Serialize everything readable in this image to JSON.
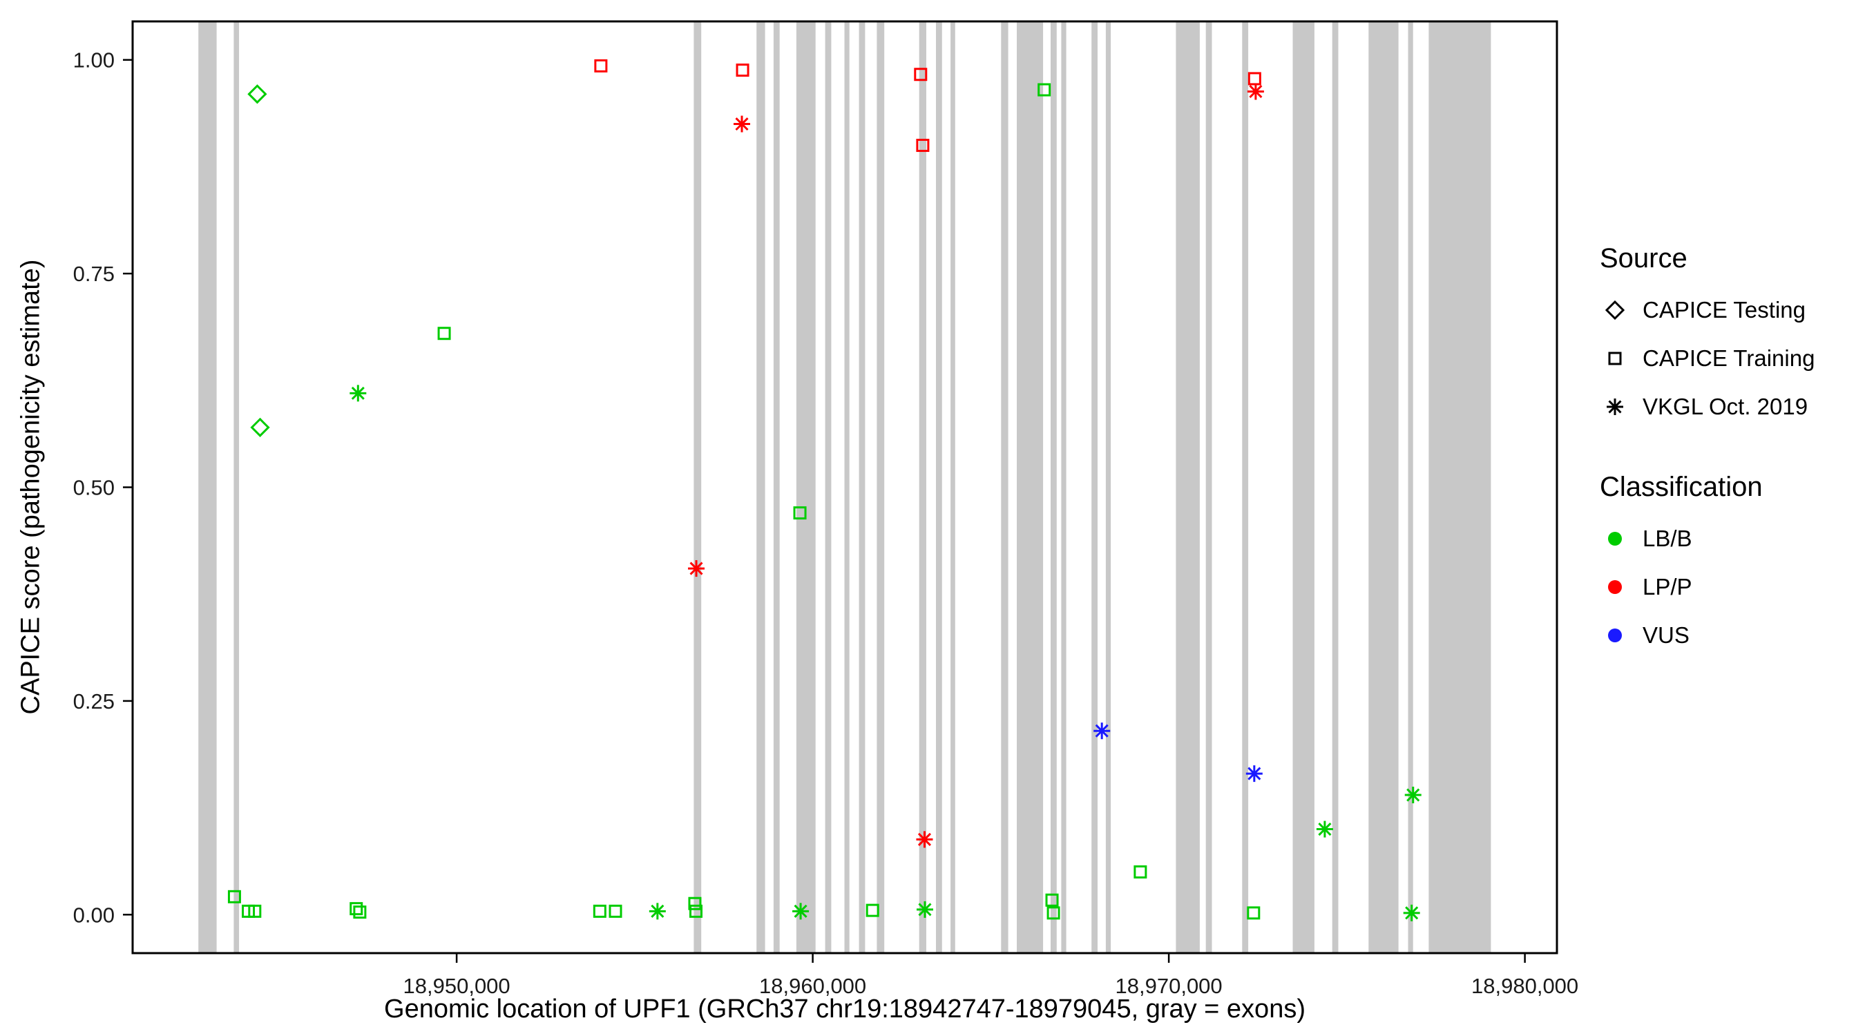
{
  "chart_data": {
    "type": "scatter",
    "title": "",
    "xlabel": "Genomic location of UPF1 (GRCh37 chr19:18942747-18979045, gray = exons)",
    "ylabel": "CAPICE score (pathogenicity estimate)",
    "xlim": [
      18940900,
      18980900
    ],
    "ylim": [
      -0.045,
      1.045
    ],
    "grid": false,
    "legend_position": "right",
    "x_ticks": [
      {
        "value": 18950000,
        "label": "18,950,000"
      },
      {
        "value": 18960000,
        "label": "18,960,000"
      },
      {
        "value": 18970000,
        "label": "18,970,000"
      },
      {
        "value": 18980000,
        "label": "18,980,000"
      }
    ],
    "y_ticks": [
      {
        "value": 0.0,
        "label": "0.00"
      },
      {
        "value": 0.25,
        "label": "0.25"
      },
      {
        "value": 0.5,
        "label": "0.50"
      },
      {
        "value": 0.75,
        "label": "0.75"
      },
      {
        "value": 1.0,
        "label": "1.00"
      }
    ],
    "exon_color": "#c8c8c8",
    "exons": [
      [
        18942747,
        18943260
      ],
      [
        18943740,
        18943890
      ],
      [
        18956660,
        18956870
      ],
      [
        18958420,
        18958660
      ],
      [
        18958900,
        18959070
      ],
      [
        18959540,
        18960080
      ],
      [
        18960350,
        18960520
      ],
      [
        18960890,
        18961030
      ],
      [
        18961300,
        18961470
      ],
      [
        18961800,
        18962010
      ],
      [
        18962990,
        18963190
      ],
      [
        18963460,
        18963630
      ],
      [
        18963870,
        18964000
      ],
      [
        18965290,
        18965490
      ],
      [
        18965730,
        18966470
      ],
      [
        18966680,
        18966850
      ],
      [
        18966980,
        18967120
      ],
      [
        18967830,
        18968000
      ],
      [
        18968230,
        18968370
      ],
      [
        18970200,
        18970870
      ],
      [
        18971040,
        18971210
      ],
      [
        18972060,
        18972230
      ],
      [
        18973480,
        18974090
      ],
      [
        18974590,
        18974760
      ],
      [
        18975610,
        18976450
      ],
      [
        18976720,
        18976860
      ],
      [
        18977300,
        18979045
      ]
    ],
    "series": [
      {
        "name": "CAPICE Testing / LB/B",
        "source": "CAPICE Testing",
        "classification": "LB/B",
        "shape": "diamond",
        "color": "#00cc00",
        "points": [
          [
            18944400,
            0.96
          ],
          [
            18944480,
            0.57
          ]
        ]
      },
      {
        "name": "CAPICE Training / LB/B",
        "source": "CAPICE Training",
        "classification": "LB/B",
        "shape": "square",
        "color": "#00cc00",
        "points": [
          [
            18943760,
            0.021
          ],
          [
            18944150,
            0.004
          ],
          [
            18944330,
            0.004
          ],
          [
            18947180,
            0.007
          ],
          [
            18947280,
            0.003
          ],
          [
            18949650,
            0.68
          ],
          [
            18954020,
            0.004
          ],
          [
            18954460,
            0.004
          ],
          [
            18956690,
            0.013
          ],
          [
            18956720,
            0.004
          ],
          [
            18959640,
            0.47
          ],
          [
            18961680,
            0.005
          ],
          [
            18966500,
            0.965
          ],
          [
            18966720,
            0.017
          ],
          [
            18966760,
            0.002
          ],
          [
            18969200,
            0.05
          ],
          [
            18972380,
            0.002
          ]
        ]
      },
      {
        "name": "VKGL Oct. 2019 / LB/B",
        "source": "VKGL Oct. 2019",
        "classification": "LB/B",
        "shape": "asterisk",
        "color": "#00cc00",
        "points": [
          [
            18947230,
            0.61
          ],
          [
            18955640,
            0.004
          ],
          [
            18959660,
            0.004
          ],
          [
            18963150,
            0.006
          ],
          [
            18974380,
            0.1
          ],
          [
            18976860,
            0.14
          ],
          [
            18976820,
            0.002
          ]
        ]
      },
      {
        "name": "CAPICE Training / LP/P",
        "source": "CAPICE Training",
        "classification": "LP/P",
        "shape": "square",
        "color": "#ff0000",
        "points": [
          [
            18954050,
            0.993
          ],
          [
            18958030,
            0.988
          ],
          [
            18963030,
            0.983
          ],
          [
            18963090,
            0.9
          ],
          [
            18972410,
            0.978
          ]
        ]
      },
      {
        "name": "VKGL Oct. 2019 / LP/P",
        "source": "VKGL Oct. 2019",
        "classification": "LP/P",
        "shape": "asterisk",
        "color": "#ff0000",
        "points": [
          [
            18956730,
            0.405
          ],
          [
            18958010,
            0.925
          ],
          [
            18963140,
            0.088
          ],
          [
            18972440,
            0.963
          ]
        ]
      },
      {
        "name": "VKGL Oct. 2019 / VUS",
        "source": "VKGL Oct. 2019",
        "classification": "VUS",
        "shape": "asterisk",
        "color": "#1a1aff",
        "points": [
          [
            18968120,
            0.215
          ],
          [
            18972400,
            0.165
          ]
        ]
      }
    ]
  },
  "legend": {
    "source_title": "Source",
    "source_items": [
      {
        "label": "CAPICE Testing",
        "shape": "diamond"
      },
      {
        "label": "CAPICE Training",
        "shape": "square"
      },
      {
        "label": "VKGL Oct. 2019",
        "shape": "asterisk"
      }
    ],
    "classification_title": "Classification",
    "classification_items": [
      {
        "label": "LB/B",
        "color": "#00cc00"
      },
      {
        "label": "LP/P",
        "color": "#ff0000"
      },
      {
        "label": "VUS",
        "color": "#1a1aff"
      }
    ]
  }
}
